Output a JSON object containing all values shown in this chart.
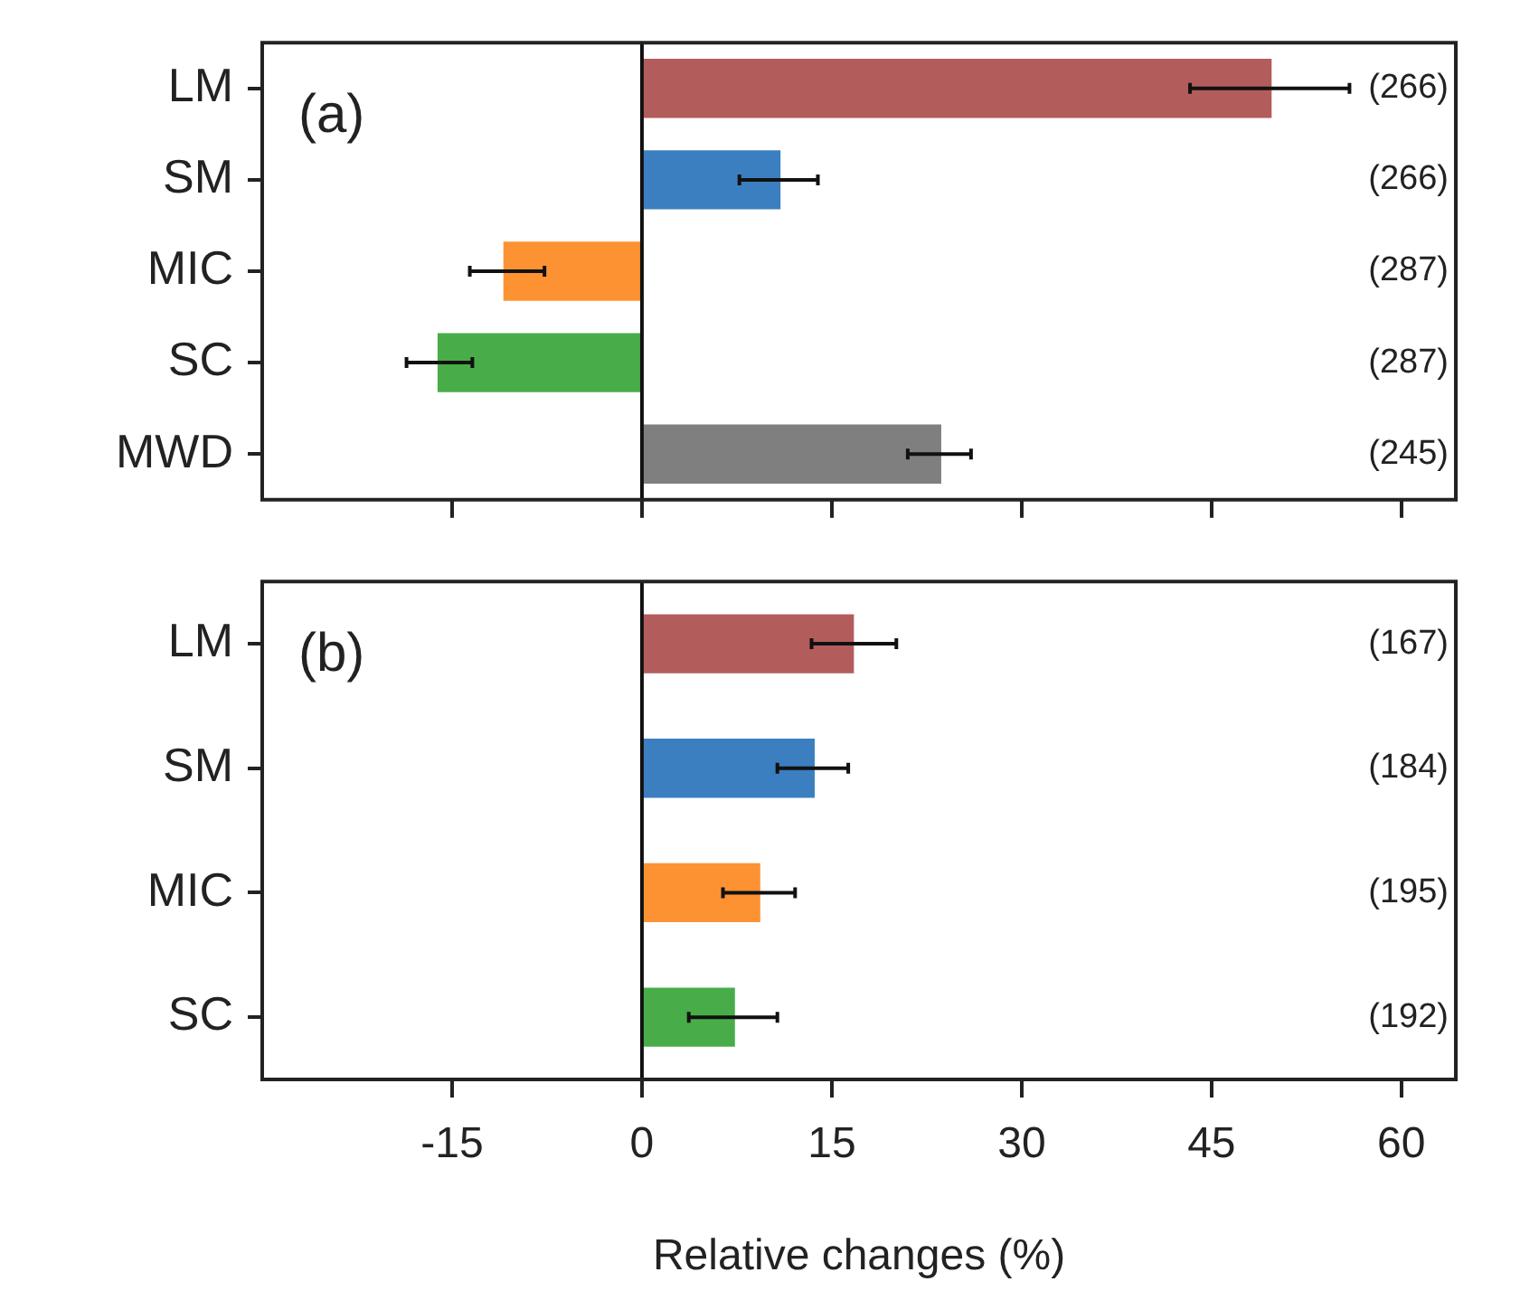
{
  "chart_data": [
    {
      "type": "bar",
      "orientation": "horizontal",
      "title": "(a)",
      "categories": [
        "LM",
        "SM",
        "MIC",
        "SC",
        "MWD"
      ],
      "values": [
        49.7,
        10.9,
        -10.9,
        -16.1,
        23.6
      ],
      "errors": [
        [
          43.3,
          55.9
        ],
        [
          7.7,
          13.9
        ],
        [
          -13.6,
          -7.7
        ],
        [
          -18.6,
          -13.4
        ],
        [
          21,
          26
        ]
      ],
      "colors": [
        "#b35c5c",
        "#3b7fc0",
        "#fd9233",
        "#48ad48",
        "#7f7f7f"
      ],
      "xlim": [
        -30,
        64.3
      ],
      "xticks": [
        -15,
        0,
        15,
        30,
        45,
        60
      ],
      "tick_labels": "y",
      "grid": false,
      "legend": false,
      "ref_lines": [
        {
          "axis": "x",
          "value": 0
        }
      ],
      "annotations": [
        "(266)",
        "(266)",
        "(287)",
        "(287)",
        "(245)"
      ]
    },
    {
      "type": "bar",
      "orientation": "horizontal",
      "title": "(b)",
      "categories": [
        "LM",
        "SM",
        "MIC",
        "SC"
      ],
      "values": [
        16.7,
        13.6,
        9.3,
        7.3
      ],
      "errors": [
        [
          13.4,
          20.1
        ],
        [
          10.7,
          16.3
        ],
        [
          6.4,
          12.1
        ],
        [
          3.7,
          10.7
        ]
      ],
      "colors": [
        "#b35c5c",
        "#3b7fc0",
        "#fd9233",
        "#48ad48"
      ],
      "xlim": [
        -30,
        64.3
      ],
      "xticks": [
        -15,
        0,
        15,
        30,
        45,
        60
      ],
      "xlabel": "Relative changes (%)",
      "grid": false,
      "legend": false,
      "ref_lines": [
        {
          "axis": "x",
          "value": 0
        }
      ],
      "annotations": [
        "(167)",
        "(184)",
        "(195)",
        "(192)"
      ]
    }
  ]
}
